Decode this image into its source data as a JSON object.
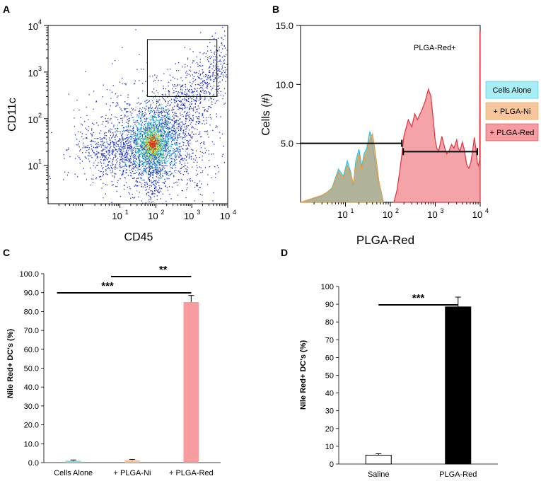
{
  "chart_data": [
    {
      "panel": "A",
      "type": "scatter",
      "subtype": "flow-cytometry-density-dot-plot",
      "xlabel": "CD45",
      "ylabel": "CD11c",
      "x_scale": "log",
      "y_scale": "log",
      "x_ticks": [
        {
          "base": "10",
          "exp": "1",
          "value": 10
        },
        {
          "base": "10",
          "exp": "2",
          "value": 100
        },
        {
          "base": "10",
          "exp": "3",
          "value": 1000
        },
        {
          "base": "10",
          "exp": "4",
          "value": 10000
        }
      ],
      "y_ticks": [
        {
          "base": "10",
          "exp": "1",
          "value": 10
        },
        {
          "base": "10",
          "exp": "2",
          "value": 100
        },
        {
          "base": "10",
          "exp": "3",
          "value": 1000
        },
        {
          "base": "10",
          "exp": "4",
          "value": 10000
        }
      ],
      "gate": {
        "x_range": [
          100,
          5000
        ],
        "y_range": [
          300,
          5000
        ]
      },
      "clusters": [
        {
          "center_x": 80,
          "center_y": 30,
          "spread": "dense"
        },
        {
          "center_x": 6,
          "center_y": 20,
          "spread": "sparse"
        },
        {
          "center_x": 400,
          "center_y": 200,
          "spread": "diagonal tail"
        }
      ]
    },
    {
      "panel": "B",
      "type": "area",
      "subtype": "overlay-histogram",
      "xlabel": "PLGA-Red",
      "ylabel": "Cells (#)",
      "x_scale": "log",
      "x_ticks": [
        {
          "base": "10",
          "exp": "1",
          "value": 10
        },
        {
          "base": "10",
          "exp": "2",
          "value": 100
        },
        {
          "base": "10",
          "exp": "3",
          "value": 1000
        },
        {
          "base": "10",
          "exp": "4",
          "value": 10000
        }
      ],
      "y_ticks": [
        "5.0",
        "10.0",
        "15.0"
      ],
      "ylim": [
        0,
        15
      ],
      "gate_label": "PLGA-Red+",
      "legend": [
        "Cells Alone",
        "+ PLGA-Ni",
        "+ PLGA-Red"
      ],
      "series": [
        {
          "name": "Cells Alone",
          "color": "#8fd3df",
          "points": [
            [
              1,
              0
            ],
            [
              3,
              0.5
            ],
            [
              5,
              1.2
            ],
            [
              7,
              2.8
            ],
            [
              9,
              2.2
            ],
            [
              11,
              3.5
            ],
            [
              13,
              2.6
            ],
            [
              15,
              1.4
            ],
            [
              17,
              3.5
            ],
            [
              20,
              4.5
            ],
            [
              23,
              3.0
            ],
            [
              26,
              4.1
            ],
            [
              30,
              4.6
            ],
            [
              35,
              6.0
            ],
            [
              40,
              5.0
            ],
            [
              45,
              3.5
            ],
            [
              50,
              2.6
            ],
            [
              55,
              1.7
            ],
            [
              60,
              1.2
            ],
            [
              65,
              0.6
            ],
            [
              70,
              0
            ]
          ]
        },
        {
          "name": "+ PLGA-Ni",
          "color": "#b3a887",
          "points": [
            [
              1,
              0
            ],
            [
              3,
              0.6
            ],
            [
              5,
              1.1
            ],
            [
              7,
              2.6
            ],
            [
              9,
              2.0
            ],
            [
              11,
              3.1
            ],
            [
              13,
              2.4
            ],
            [
              15,
              1.6
            ],
            [
              17,
              3.0
            ],
            [
              20,
              4.1
            ],
            [
              23,
              2.7
            ],
            [
              26,
              3.8
            ],
            [
              30,
              4.3
            ],
            [
              35,
              5.4
            ],
            [
              40,
              5.8
            ],
            [
              45,
              4.5
            ],
            [
              50,
              3.2
            ],
            [
              55,
              1.9
            ],
            [
              60,
              1.1
            ],
            [
              65,
              0.5
            ],
            [
              70,
              0
            ]
          ]
        },
        {
          "name": "+ PLGA-Red",
          "color": "#f4a4a8",
          "points": [
            [
              120,
              0
            ],
            [
              140,
              1.0
            ],
            [
              160,
              2.5
            ],
            [
              180,
              4.0
            ],
            [
              200,
              5.6
            ],
            [
              250,
              7.0
            ],
            [
              300,
              6.4
            ],
            [
              350,
              7.5
            ],
            [
              400,
              7.0
            ],
            [
              500,
              7.8
            ],
            [
              600,
              8.6
            ],
            [
              700,
              9.6
            ],
            [
              800,
              9.0
            ],
            [
              900,
              7.0
            ],
            [
              1000,
              5.2
            ],
            [
              1100,
              4.5
            ],
            [
              1200,
              4.4
            ],
            [
              1400,
              5.6
            ],
            [
              1600,
              4.7
            ],
            [
              1800,
              4.1
            ],
            [
              2000,
              4.3
            ],
            [
              2300,
              4.9
            ],
            [
              2600,
              4.6
            ],
            [
              3000,
              5.3
            ],
            [
              3300,
              4.5
            ],
            [
              3600,
              4.4
            ],
            [
              4000,
              5.1
            ],
            [
              4400,
              4.5
            ],
            [
              5000,
              3.2
            ],
            [
              5600,
              2.9
            ],
            [
              6200,
              3.4
            ],
            [
              6800,
              4.4
            ],
            [
              7400,
              5.5
            ],
            [
              8000,
              4.6
            ],
            [
              8600,
              3.4
            ],
            [
              9200,
              3.1
            ],
            [
              9700,
              3.6
            ],
            [
              9850,
              14.5
            ],
            [
              10000,
              14.5
            ],
            [
              10000,
              0
            ]
          ]
        }
      ],
      "gates": [
        {
          "x_range": [
            1,
            180
          ],
          "y": 5.0
        },
        {
          "x_range": [
            180,
            10000
          ],
          "y": 4.3
        }
      ]
    },
    {
      "panel": "C",
      "type": "bar",
      "ylabel": "Nile Red+ DC's (%)",
      "categories": [
        "Cells Alone",
        "+ PLGA-Ni",
        "+ PLGA-Red"
      ],
      "values": [
        1.0,
        1.3,
        85.0
      ],
      "errors": [
        0.4,
        0.4,
        3.5
      ],
      "colors": [
        "#8fd3df",
        "#f4c49c",
        "#f79c9f"
      ],
      "ylim": [
        0,
        100
      ],
      "yticks": [
        "0.0",
        "10.0",
        "20.0",
        "30.0",
        "40.0",
        "50.0",
        "60.0",
        "70.0",
        "80.0",
        "90.0",
        "100.0"
      ],
      "significance": [
        {
          "from": 1,
          "to": 2,
          "label": "**"
        },
        {
          "from": 0,
          "to": 2,
          "label": "***"
        }
      ]
    },
    {
      "panel": "D",
      "type": "bar",
      "ylabel": "Nile Red+ DC's (%)",
      "categories": [
        "Saline",
        "PLGA-Red"
      ],
      "values": [
        5.0,
        88.5
      ],
      "errors": [
        0.8,
        5.5
      ],
      "colors": [
        "#ffffff",
        "#000000"
      ],
      "ylim": [
        0,
        100
      ],
      "yticks": [
        "0",
        "10",
        "20",
        "30",
        "40",
        "50",
        "60",
        "70",
        "80",
        "90",
        "100"
      ],
      "significance": [
        {
          "from": 0,
          "to": 1,
          "label": "***"
        }
      ]
    }
  ],
  "panel_letters": [
    "A",
    "B",
    "C",
    "D"
  ],
  "colors": {
    "dot_low": "#1d2fc8",
    "dot_mid": "#1fb4e0",
    "dot_high": "#e8e23a",
    "dot_peak": "#e0301e"
  }
}
